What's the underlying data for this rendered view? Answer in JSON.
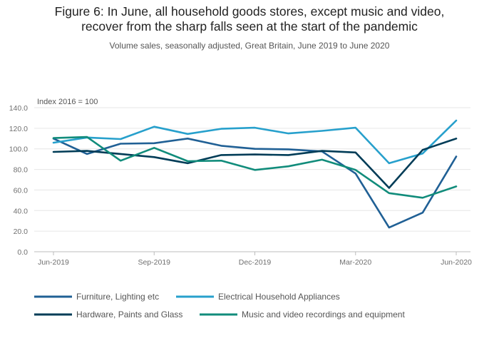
{
  "chart_data": {
    "type": "line",
    "title_line1": "Figure 6: In June, all household goods stores, except music and video,",
    "title_line2": "recover from the sharp falls seen at the start of the pandemic",
    "subtitle": "Volume sales, seasonally adjusted, Great Britain, June 2019 to June 2020",
    "ylabel": "Index 2016 = 100",
    "ylim": [
      0,
      140
    ],
    "yticks": [
      0,
      20,
      40,
      60,
      80,
      100,
      120,
      140
    ],
    "ytick_labels": [
      "0.0",
      "20.0",
      "40.0",
      "60.0",
      "80.0",
      "100.0",
      "120.0",
      "140.0"
    ],
    "x": [
      "Jun-2019",
      "Jul-2019",
      "Aug-2019",
      "Sep-2019",
      "Oct-2019",
      "Nov-2019",
      "Dec-2019",
      "Jan-2020",
      "Feb-2020",
      "Mar-2020",
      "Apr-2020",
      "May-2020",
      "Jun-2020"
    ],
    "xtick_labels": [
      "Jun-2019",
      "Sep-2019",
      "Dec-2019",
      "Mar-2020",
      "Jun-2020"
    ],
    "xtick_index": [
      0,
      3,
      6,
      9,
      12
    ],
    "grid": true,
    "legend_position": "bottom",
    "series": [
      {
        "name": "Furniture, Lighting etc",
        "color": "#206095",
        "values": [
          110,
          95,
          105,
          105.5,
          110,
          103,
          100,
          99.5,
          97.5,
          76,
          23.5,
          38,
          92.5
        ]
      },
      {
        "name": "Electrical Household Appliances",
        "color": "#27a0cc",
        "values": [
          106,
          111,
          109.5,
          121.5,
          114.5,
          119.5,
          120.5,
          115,
          117.5,
          120.5,
          86,
          95.5,
          127.5
        ]
      },
      {
        "name": "Hardware, Paints and Glass",
        "color": "#003c57",
        "values": [
          97,
          98,
          95,
          92,
          86,
          94,
          94.5,
          94,
          98,
          96.5,
          62,
          99,
          110
        ]
      },
      {
        "name": "Music and video recordings and equipment",
        "color": "#118c7b",
        "values": [
          110.5,
          111.5,
          88.5,
          101,
          88,
          88.5,
          79.5,
          83,
          89.5,
          79.5,
          57,
          52.5,
          63.5
        ]
      }
    ]
  }
}
